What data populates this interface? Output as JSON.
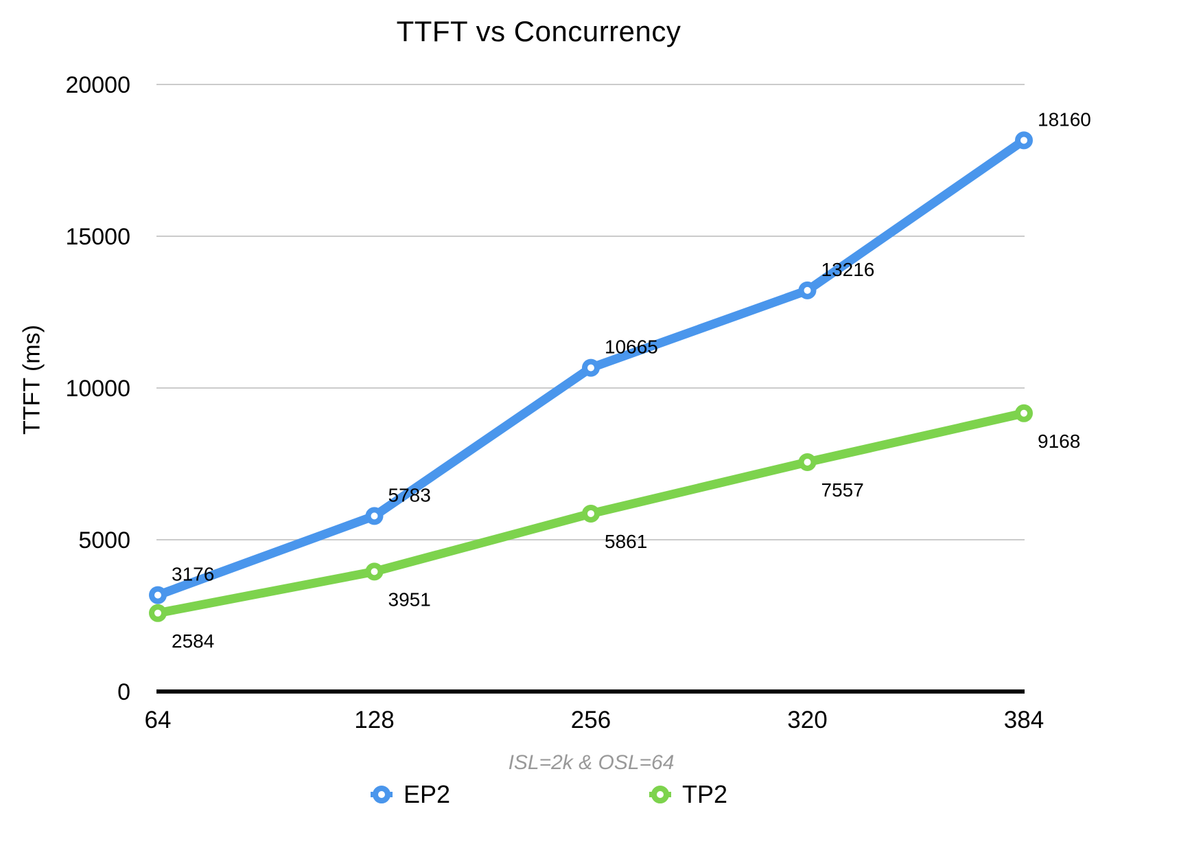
{
  "chart_data": {
    "type": "line",
    "title": "TTFT vs Concurrency",
    "ylabel": "TTFT (ms)",
    "xlabel": "ISL=2k & OSL=64",
    "categories": [
      "64",
      "128",
      "256",
      "320",
      "384"
    ],
    "series": [
      {
        "name": "EP2",
        "color": "#4A96EC",
        "values": [
          3176,
          5783,
          10665,
          13216,
          18160
        ],
        "data_label_position": "above"
      },
      {
        "name": "TP2",
        "color": "#7DD34D",
        "values": [
          2584,
          3951,
          5861,
          7557,
          9168
        ],
        "data_label_position": "below"
      }
    ],
    "ylim": [
      0,
      20000
    ],
    "yticks": [
      0,
      5000,
      10000,
      15000,
      20000
    ],
    "grid": true,
    "legend_position": "bottom",
    "styles": {
      "grid_color": "#CBCBCB",
      "axis_color": "#000000",
      "subtitle_color": "#999999",
      "text_color": "#000000",
      "background": "#FFFFFF"
    }
  }
}
